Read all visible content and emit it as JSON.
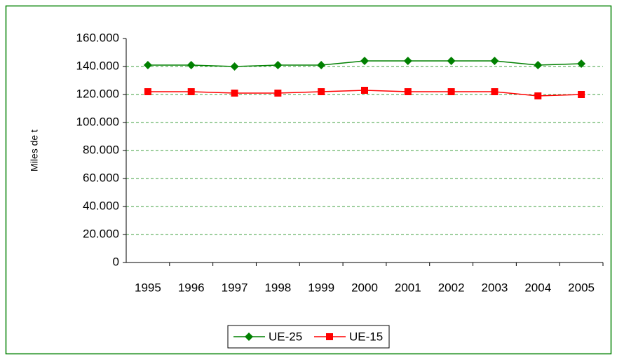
{
  "chart_data": {
    "type": "line",
    "y_label": "Miles de t",
    "categories": [
      "1995",
      "1996",
      "1997",
      "1998",
      "1999",
      "2000",
      "2001",
      "2002",
      "2003",
      "2004",
      "2005"
    ],
    "series": [
      {
        "name": "UE-25",
        "color": "#008000",
        "marker": "diamond",
        "values": [
          141000,
          141000,
          140000,
          141000,
          141000,
          144000,
          144000,
          144000,
          144000,
          141000,
          142000
        ]
      },
      {
        "name": "UE-15",
        "color": "#ff0000",
        "marker": "square",
        "values": [
          122000,
          122000,
          121000,
          121000,
          122000,
          123000,
          122000,
          122000,
          122000,
          119000,
          120000
        ]
      }
    ],
    "ylim": [
      0,
      160000
    ],
    "yticks": [
      0,
      {
        "value": 20000,
        "label": "20.000"
      },
      {
        "value": 40000,
        "label": "40.000"
      },
      {
        "value": 60000,
        "label": "60.000"
      },
      {
        "value": 80000,
        "label": "80.000"
      },
      {
        "value": 100000,
        "label": "100.000"
      },
      {
        "value": 120000,
        "label": "120.000"
      },
      {
        "value": 140000,
        "label": "140.000"
      },
      {
        "value": 160000,
        "label": "160.000"
      }
    ],
    "grid": true,
    "legend": "bottom"
  }
}
